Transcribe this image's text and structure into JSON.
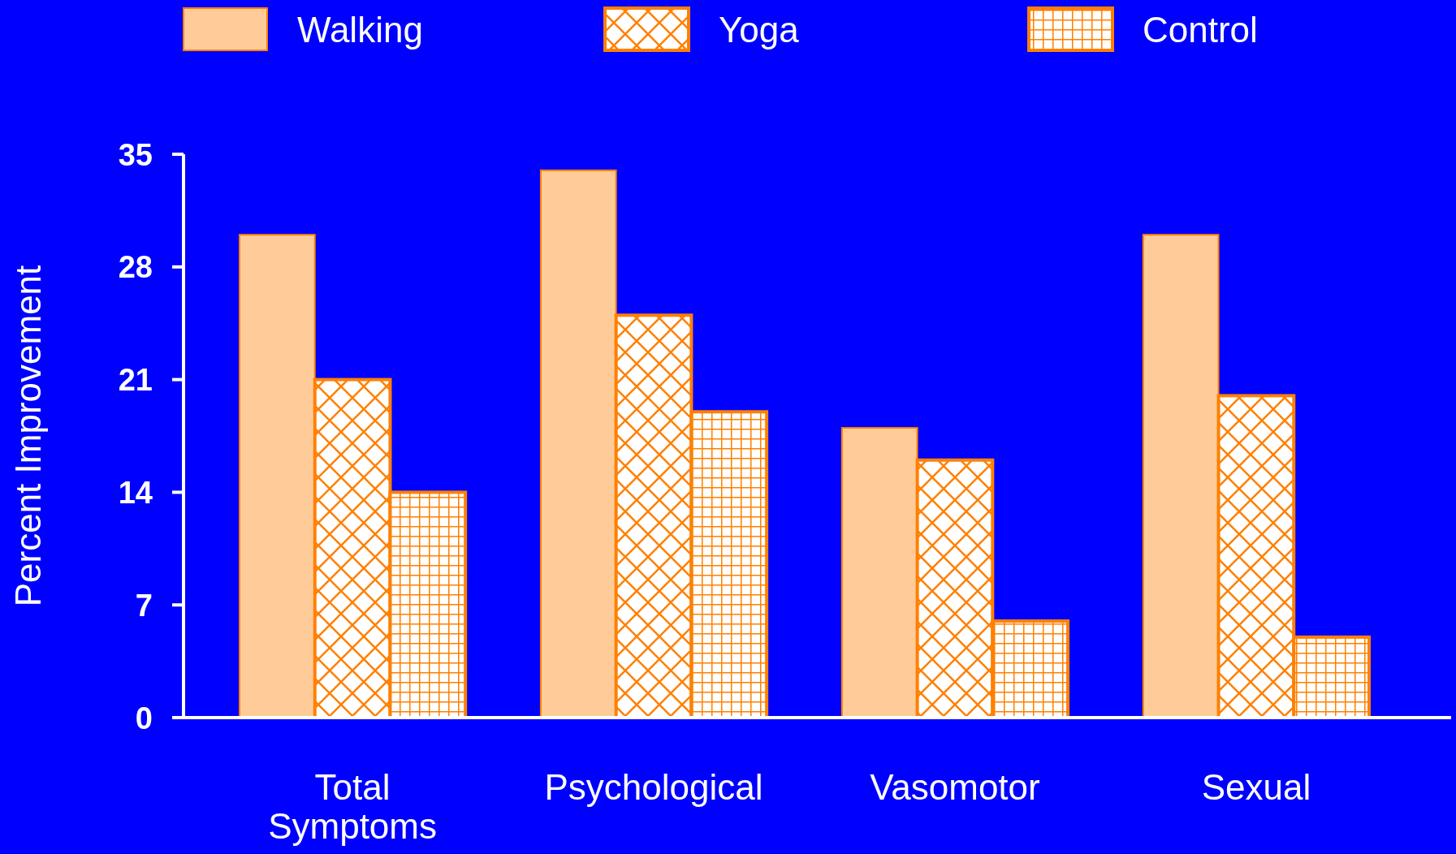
{
  "chart_data": {
    "type": "bar",
    "ylabel": "Percent Improvement",
    "categories": [
      "Total Symptoms",
      "Psychological",
      "Vasomotor",
      "Sexual"
    ],
    "series": [
      {
        "name": "Walking",
        "color": "#ffcc99",
        "values": [
          30,
          34,
          18,
          30
        ]
      },
      {
        "name": "Yoga",
        "color": "#ff8000",
        "values": [
          21,
          25,
          16,
          20
        ]
      },
      {
        "name": "Control",
        "color": "#ff8000",
        "values": [
          14,
          19,
          6,
          5
        ]
      }
    ],
    "ylim": [
      0,
      35
    ],
    "yticks": [
      0,
      7,
      14,
      21,
      28,
      35
    ],
    "grid": false,
    "legend": "top"
  }
}
